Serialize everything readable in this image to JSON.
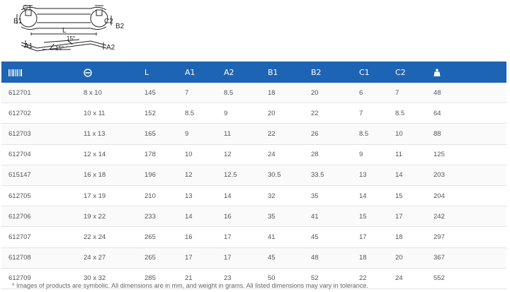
{
  "diagram": {
    "labels": {
      "c1": "C1",
      "b1": "B1",
      "c2": "C2",
      "b2": "B2",
      "l": "L",
      "angle_top": "15°",
      "angle_bottom": "15°",
      "a1": "A1",
      "a2": "A2"
    }
  },
  "table": {
    "header_icons": [
      "barcode-icon",
      "wrench-size-icon",
      "weight-icon"
    ],
    "headers": [
      "",
      "",
      "L",
      "A1",
      "A2",
      "B1",
      "B2",
      "C1",
      "C2",
      ""
    ],
    "rows": [
      [
        "612701",
        "8 x 10",
        "145",
        "7",
        "8.5",
        "18",
        "20",
        "6",
        "7",
        "48"
      ],
      [
        "612702",
        "10 x 11",
        "152",
        "8.5",
        "9",
        "20",
        "22",
        "7",
        "8.5",
        "64"
      ],
      [
        "612703",
        "11 x 13",
        "165",
        "9",
        "11",
        "22",
        "26",
        "8.5",
        "10",
        "88"
      ],
      [
        "612704",
        "12 x 14",
        "178",
        "10",
        "12",
        "24",
        "28",
        "9",
        "11",
        "125"
      ],
      [
        "615147",
        "16 x 18",
        "196",
        "12",
        "12.5",
        "30.5",
        "33.5",
        "13",
        "14",
        "203"
      ],
      [
        "612705",
        "17 x 19",
        "210",
        "13",
        "14",
        "32",
        "35",
        "14",
        "15",
        "204"
      ],
      [
        "612706",
        "19 x 22",
        "233",
        "14",
        "16",
        "35",
        "41",
        "15",
        "17",
        "242"
      ],
      [
        "612707",
        "22 x 24",
        "265",
        "16",
        "17",
        "41",
        "45",
        "17",
        "18",
        "297"
      ],
      [
        "612708",
        "24 x 27",
        "265",
        "17",
        "17",
        "45",
        "48",
        "18",
        "20",
        "367"
      ],
      [
        "612709",
        "30 x 32",
        "285",
        "21",
        "23",
        "50",
        "52",
        "22",
        "24",
        "552"
      ]
    ]
  },
  "footnote": "* Images of products are symbolic. All dimensions are in mm, and weight in grams. All listed dimensions may vary in tolerance.",
  "colors": {
    "header_bg": "#1e64b4",
    "header_text": "#ffffff",
    "row_border": "#e3e3e3"
  }
}
